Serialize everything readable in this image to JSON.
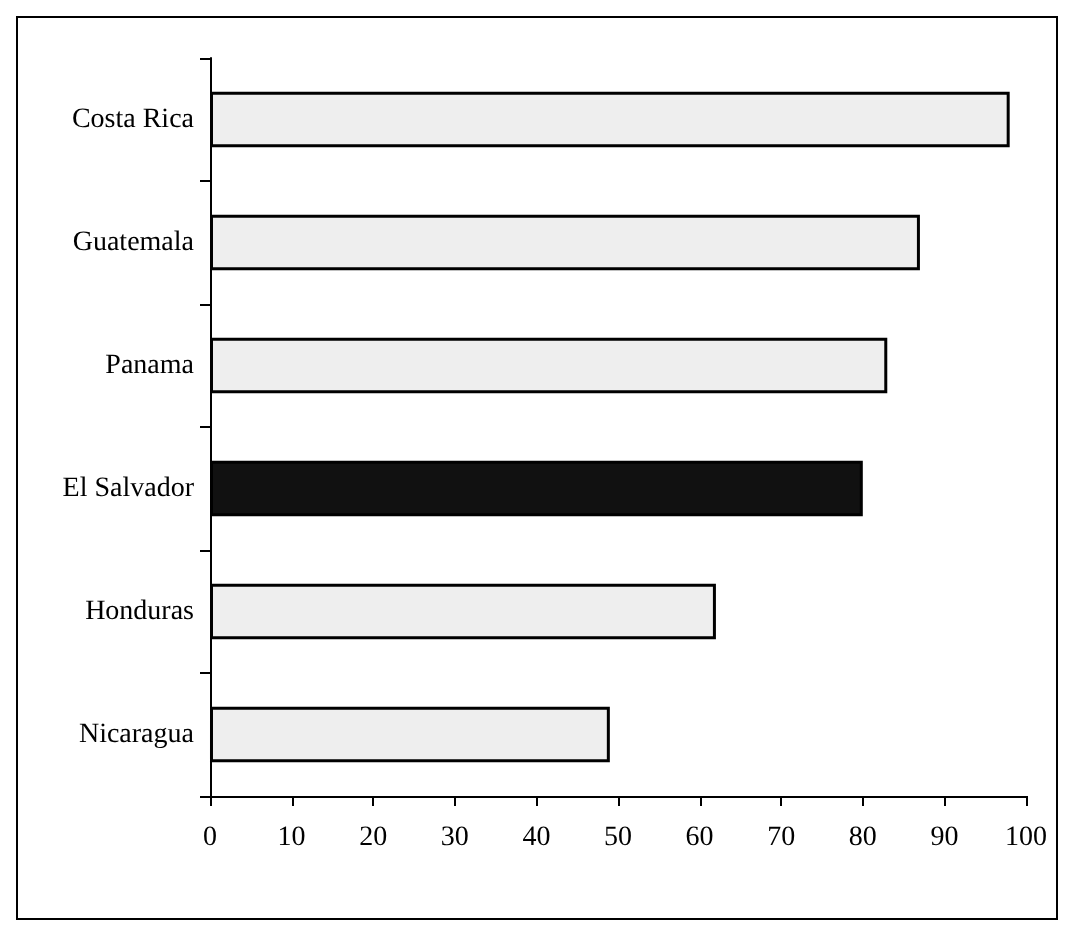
{
  "chart_data": {
    "type": "bar",
    "orientation": "horizontal",
    "categories": [
      "Costa Rica",
      "Guatemala",
      "Panama",
      "El Salvador",
      "Honduras",
      "Nicaragua"
    ],
    "values": [
      98,
      87,
      83,
      80,
      62,
      49
    ],
    "colors": [
      "#eeeeee",
      "#eeeeee",
      "#eeeeee",
      "#111111",
      "#eeeeee",
      "#eeeeee"
    ],
    "xlim": [
      0,
      100
    ],
    "xticks": [
      0,
      10,
      20,
      30,
      40,
      50,
      60,
      70,
      80,
      90,
      100
    ]
  }
}
